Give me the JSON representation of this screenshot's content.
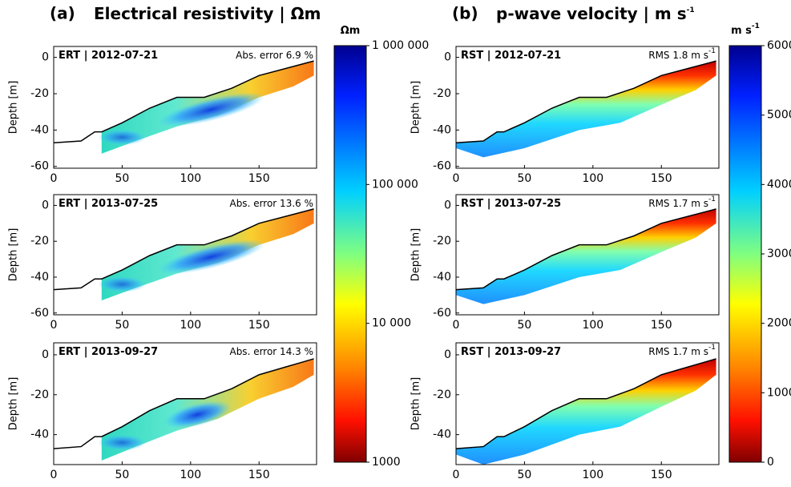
{
  "figure": {
    "xticks": [
      0,
      50,
      100,
      150
    ],
    "xlim": [
      0,
      192
    ],
    "y_label": "Depth [m]",
    "columns": [
      {
        "letter": "(a)",
        "title": "Electrical resistivity | Ωm",
        "kind": "ert",
        "colorbar": {
          "unit": "Ωm",
          "unit_sup": "",
          "log": true,
          "lim": [
            1000,
            1000000
          ],
          "ticks": [
            {
              "value": 1000000,
              "label": "1 000 000"
            },
            {
              "value": 100000,
              "label": "100 000"
            },
            {
              "value": 10000,
              "label": "10 000"
            },
            1000
          ]
        },
        "panels": [
          {
            "method": "ERT",
            "date": "2012-07-21",
            "stat": "Abs. error 6.9 %",
            "stat_sup": "",
            "ylim": [
              -61,
              6
            ],
            "yticks": [
              0,
              -20,
              -40,
              -60
            ]
          },
          {
            "method": "ERT",
            "date": "2013-07-25",
            "stat": "Abs. error 13.6 %",
            "stat_sup": "",
            "ylim": [
              -61,
              6
            ],
            "yticks": [
              0,
              -20,
              -40,
              -60
            ]
          },
          {
            "method": "ERT",
            "date": "2013-09-27",
            "stat": "Abs. error 14.3 %",
            "stat_sup": "",
            "ylim": [
              -55,
              6
            ],
            "yticks": [
              0,
              -20,
              -40
            ]
          }
        ]
      },
      {
        "letter": "(b)",
        "title": "p-wave velocity | m s",
        "title_sup": "-1",
        "kind": "rst",
        "colorbar": {
          "unit": "m s",
          "unit_sup": "-1",
          "log": false,
          "lim": [
            0,
            6000
          ],
          "ticks": [
            6000,
            5000,
            4000,
            3000,
            2000,
            1000,
            0
          ]
        },
        "panels": [
          {
            "method": "RST",
            "date": "2012-07-21",
            "stat": "RMS 1.8 m s",
            "stat_sup": "-1",
            "ylim": [
              -61,
              6
            ],
            "yticks": [
              0,
              -20,
              -40,
              -60
            ]
          },
          {
            "method": "RST",
            "date": "2013-07-25",
            "stat": "RMS 1.7 m s",
            "stat_sup": "-1",
            "ylim": [
              -61,
              6
            ],
            "yticks": [
              0,
              -20,
              -40,
              -60
            ]
          },
          {
            "method": "RST",
            "date": "2013-09-27",
            "stat": "RMS 1.7 m s",
            "stat_sup": "-1",
            "ylim": [
              -55,
              6
            ],
            "yticks": [
              0,
              -20,
              -40
            ]
          }
        ]
      }
    ]
  }
}
